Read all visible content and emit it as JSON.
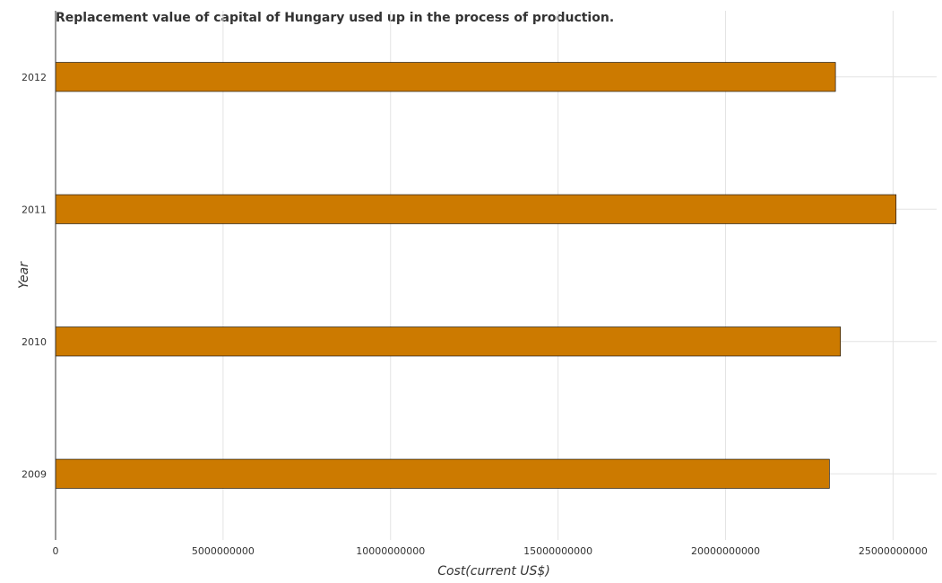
{
  "chart_data": {
    "type": "bar",
    "orientation": "horizontal",
    "title": "Replacement value of capital of Hungary used up in the process of production.",
    "xlabel": "Cost(current US$)",
    "ylabel": "Year",
    "categories": [
      "2009",
      "2010",
      "2011",
      "2012"
    ],
    "values": [
      23100000000,
      23430000000,
      25090000000,
      23280000000
    ],
    "xlim": [
      0,
      26300000000
    ],
    "xticks": [
      0,
      5000000000,
      10000000000,
      15000000000,
      20000000000,
      25000000000
    ],
    "xtick_labels": [
      "0",
      "5000000000",
      "10000000000",
      "15000000000",
      "20000000000",
      "25000000000"
    ],
    "grid": true,
    "bar_color": "#cc7a00"
  }
}
